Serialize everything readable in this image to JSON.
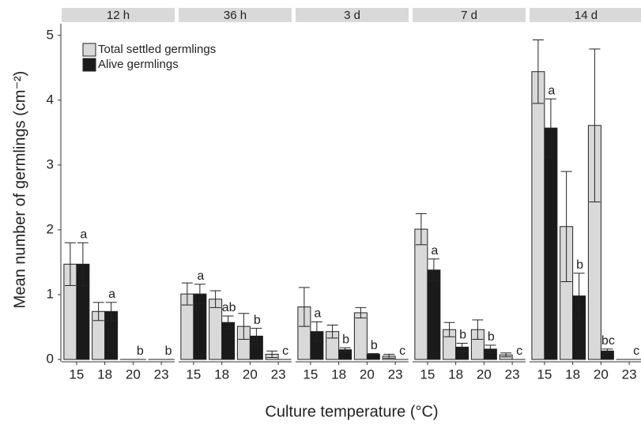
{
  "chart_data": {
    "type": "bar",
    "y_label": "Mean number of germlings (cm⁻²)",
    "x_label": "Culture temperature (°C)",
    "ylim": [
      0,
      5.18
    ],
    "yticks": [
      0,
      1,
      2,
      3,
      4,
      5
    ],
    "series": [
      {
        "name": "Total settled germlings",
        "color": "#d9d9d9"
      },
      {
        "name": "Alive germlings",
        "color": "#1a1a1a"
      }
    ],
    "facets": [
      {
        "title": "12 h",
        "categories": [
          "15",
          "18",
          "20",
          "23"
        ],
        "values": [
          [
            1.47,
            0.74,
            0,
            0
          ],
          [
            1.47,
            0.74,
            0,
            0
          ]
        ],
        "errors": [
          [
            0.33,
            0.14,
            0,
            0
          ],
          [
            0.33,
            0.14,
            0,
            0
          ]
        ],
        "letters": [
          "a",
          "a",
          "b",
          "b"
        ]
      },
      {
        "title": "36 h",
        "categories": [
          "15",
          "18",
          "20",
          "23"
        ],
        "values": [
          [
            1.01,
            0.93,
            0.51,
            0.08
          ],
          [
            1.01,
            0.57,
            0.36,
            0
          ]
        ],
        "errors": [
          [
            0.17,
            0.13,
            0.2,
            0.05
          ],
          [
            0.15,
            0.1,
            0.12,
            0
          ]
        ],
        "letters": [
          "a",
          "ab",
          "b",
          "c"
        ]
      },
      {
        "title": "3 d",
        "categories": [
          "15",
          "18",
          "20",
          "23"
        ],
        "values": [
          [
            0.81,
            0.43,
            0.72,
            0.05
          ],
          [
            0.43,
            0.15,
            0.08,
            0
          ]
        ],
        "errors": [
          [
            0.3,
            0.1,
            0.08,
            0.03
          ],
          [
            0.15,
            0.03,
            0.01,
            0
          ]
        ],
        "letters": [
          "a",
          "b",
          "b",
          "c"
        ]
      },
      {
        "title": "7 d",
        "categories": [
          "15",
          "18",
          "20",
          "23"
        ],
        "values": [
          [
            2.01,
            0.46,
            0.46,
            0.07
          ],
          [
            1.38,
            0.19,
            0.16,
            0
          ]
        ],
        "errors": [
          [
            0.24,
            0.11,
            0.15,
            0.03
          ],
          [
            0.17,
            0.06,
            0.06,
            0
          ]
        ],
        "letters": [
          "a",
          "b",
          "b",
          "c"
        ]
      },
      {
        "title": "14 d",
        "categories": [
          "15",
          "18",
          "20",
          "23"
        ],
        "values": [
          [
            4.44,
            2.05,
            3.61,
            0
          ],
          [
            3.57,
            0.98,
            0.13,
            0
          ]
        ],
        "errors": [
          [
            0.49,
            0.85,
            1.18,
            0
          ],
          [
            0.45,
            0.35,
            0.03,
            0
          ]
        ],
        "letters": [
          "a",
          "b",
          "bc",
          "c"
        ]
      }
    ]
  }
}
